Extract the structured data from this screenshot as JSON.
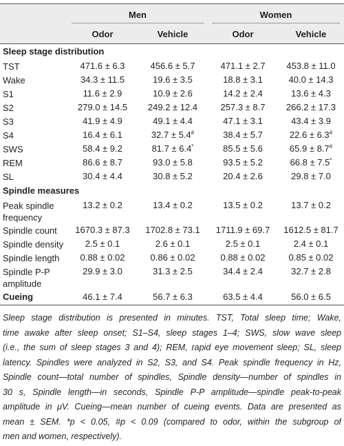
{
  "header": {
    "groups": [
      "Men",
      "Women"
    ],
    "columns": [
      "Odor",
      "Vehicle",
      "Odor",
      "Vehicle"
    ]
  },
  "sections": [
    {
      "title": "Sleep stage distribution",
      "rows": [
        {
          "label": "TST",
          "cells": [
            "471.6 ± 6.3",
            "456.6 ± 5.7",
            "471.1 ± 2.7",
            "453.8 ± 11.0"
          ]
        },
        {
          "label": "Wake",
          "cells": [
            "34.3 ± 11.5",
            "19.6 ± 3.5",
            "18.8 ± 3.1",
            "40.0 ± 14.3"
          ]
        },
        {
          "label": "S1",
          "cells": [
            "11.6 ± 2.9",
            "10.9 ± 2.6",
            "14.2 ± 2.4",
            "13.6 ± 4.3"
          ]
        },
        {
          "label": "S2",
          "cells": [
            "279.0 ± 14.5",
            "249.2 ± 12.4",
            "257.3 ± 8.7",
            "266.2 ± 17.3"
          ]
        },
        {
          "label": "S3",
          "cells": [
            "41.9 ± 4.9",
            "49.1 ± 4.4",
            "47.1 ± 3.1",
            "43.4 ± 3.9"
          ]
        },
        {
          "label": "S4",
          "cells": [
            "16.4 ± 6.1",
            {
              "text": "32.7 ± 5.4",
              "sup": "#"
            },
            "38.4 ± 5.7",
            {
              "text": "22.6 ± 6.3",
              "sup": "#"
            }
          ]
        },
        {
          "label": "SWS",
          "cells": [
            "58.4 ± 9.2",
            {
              "text": "81.7 ± 6.4",
              "sup": "*"
            },
            "85.5 ± 5.6",
            {
              "text": "65.9 ± 8.7",
              "sup": "#"
            }
          ]
        },
        {
          "label": "REM",
          "cells": [
            "86.6 ± 8.7",
            "93.0 ± 5.8",
            "93.5 ± 5.2",
            {
              "text": "66.8 ± 7.5",
              "sup": "*"
            }
          ]
        },
        {
          "label": "SL",
          "cells": [
            "30.4 ± 4.4",
            "30.8 ± 5.2",
            "20.4 ± 2.6",
            "29.8 ± 7.0"
          ]
        }
      ]
    },
    {
      "title": "Spindle measures",
      "rows": [
        {
          "label": "Peak spindle frequency",
          "cells": [
            "13.2 ± 0.2",
            "13.4 ± 0.2",
            "13.5 ± 0.2",
            "13.7 ± 0.2"
          ]
        },
        {
          "label": "Spindle count",
          "cells": [
            "1670.3 ± 87.3",
            "1702.8 ± 73.1",
            "1711.9 ± 69.7",
            "1612.5 ± 81.7"
          ]
        },
        {
          "label": "Spindle density",
          "cells": [
            "2.5 ± 0.1",
            "2.6 ± 0.1",
            "2.5 ± 0.1",
            "2.4 ± 0.1"
          ]
        },
        {
          "label": "Spindle length",
          "cells": [
            "0.88 ± 0.02",
            "0.86 ± 0.02",
            "0.88 ± 0.02",
            "0.85 ± 0.02"
          ]
        },
        {
          "label": "Spindle P-P amplitude",
          "cells": [
            "29.9 ± 3.0",
            "31.3 ± 2.5",
            "34.4 ± 2.4",
            "32.7 ± 2.8"
          ]
        }
      ]
    },
    {
      "title": "Cueing",
      "cells": [
        "46.1 ± 7.4",
        "56.7 ± 6.3",
        "63.5 ± 4.4",
        "56.0 ± 6.5"
      ]
    }
  ],
  "footnote": [
    "Sleep stage distribution is presented in minutes. TST, Total sleep time; Wake,",
    "time awake after sleep onset; S1–S4, sleep stages 1–4; SWS, slow wave sleep",
    "(i.e., the sum of sleep stages 3 and 4); REM, rapid eye movement sleep; SL, sleep",
    "latency. Spindles were analyzed in S2, S3, and S4. Peak spindle frequency in Hz,",
    "Spindle count—total number of spindles, Spindle density—number of spindles in",
    "30 s, Spindle length—in seconds, Spindle P-P amplitude—spindle peak-to-peak",
    "amplitude in μV. Cueing—mean number of cueing events. Data are presented as",
    "mean ± SEM. *p < 0.05, #p < 0.09 (compared to odor, within the subgroup of",
    "men and women, respectively)."
  ]
}
